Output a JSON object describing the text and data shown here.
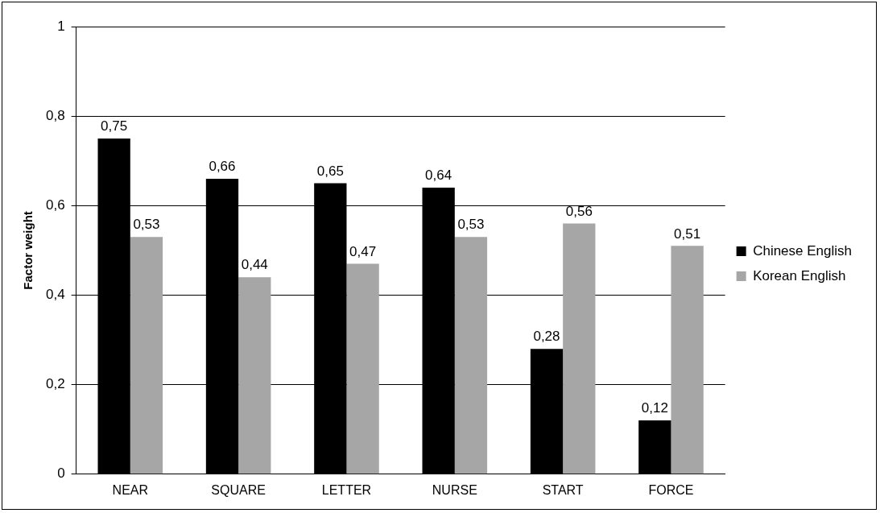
{
  "chart_data": {
    "type": "bar",
    "ylabel": "Factor weight",
    "categories": [
      "NEAR",
      "SQUARE",
      "LETTER",
      "NURSE",
      "START",
      "FORCE"
    ],
    "series": [
      {
        "name": "Chinese English",
        "color": "#000000",
        "values": [
          0.75,
          0.66,
          0.65,
          0.64,
          0.28,
          0.12
        ],
        "value_labels": [
          "0,75",
          "0,66",
          "0,65",
          "0,64",
          "0,28",
          "0,12"
        ]
      },
      {
        "name": "Korean English",
        "color": "#a6a6a6",
        "values": [
          0.53,
          0.44,
          0.47,
          0.53,
          0.56,
          0.51
        ],
        "value_labels": [
          "0,53",
          "0,44",
          "0,47",
          "0,53",
          "0,56",
          "0,51"
        ]
      }
    ],
    "ylim": [
      0,
      1
    ],
    "yticks": [
      {
        "value": 0,
        "label": "0"
      },
      {
        "value": 0.2,
        "label": "0,2"
      },
      {
        "value": 0.4,
        "label": "0,4"
      },
      {
        "value": 0.6,
        "label": "0,6"
      },
      {
        "value": 0.8,
        "label": "0,8"
      },
      {
        "value": 1,
        "label": "1"
      }
    ],
    "grid": "y",
    "legend": "right"
  }
}
